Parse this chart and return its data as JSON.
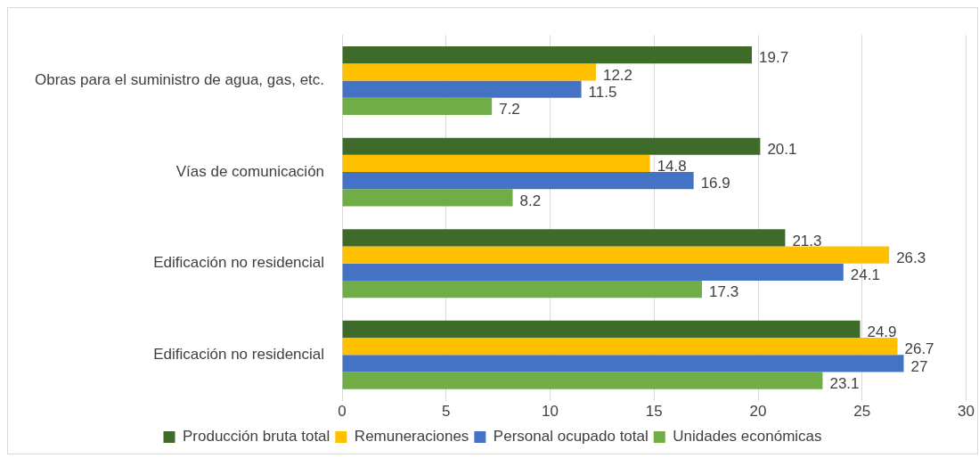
{
  "chart_data": {
    "type": "bar",
    "orientation": "horizontal",
    "categories": [
      "Obras para el suministro de agua, gas, etc.",
      "Vías de comunicación",
      "Edificación no residencial",
      "Edificación no residencial"
    ],
    "series": [
      {
        "name": "Producción bruta total",
        "color": "#3e6b2a",
        "values": [
          19.7,
          20.1,
          21.3,
          24.9
        ]
      },
      {
        "name": "Remuneraciones",
        "color": "#ffc000",
        "values": [
          12.2,
          14.8,
          26.3,
          26.7
        ]
      },
      {
        "name": "Personal ocupado total",
        "color": "#4472c4",
        "values": [
          11.5,
          16.9,
          24.1,
          27
        ]
      },
      {
        "name": "Unidades económicas",
        "color": "#70ad47",
        "values": [
          7.2,
          8.2,
          17.3,
          23.1
        ]
      }
    ],
    "xlim": [
      0,
      30
    ],
    "xticks": [
      0,
      5,
      10,
      15,
      20,
      25,
      30
    ],
    "grid": "x",
    "legend": "bottom",
    "data_labels": true
  }
}
